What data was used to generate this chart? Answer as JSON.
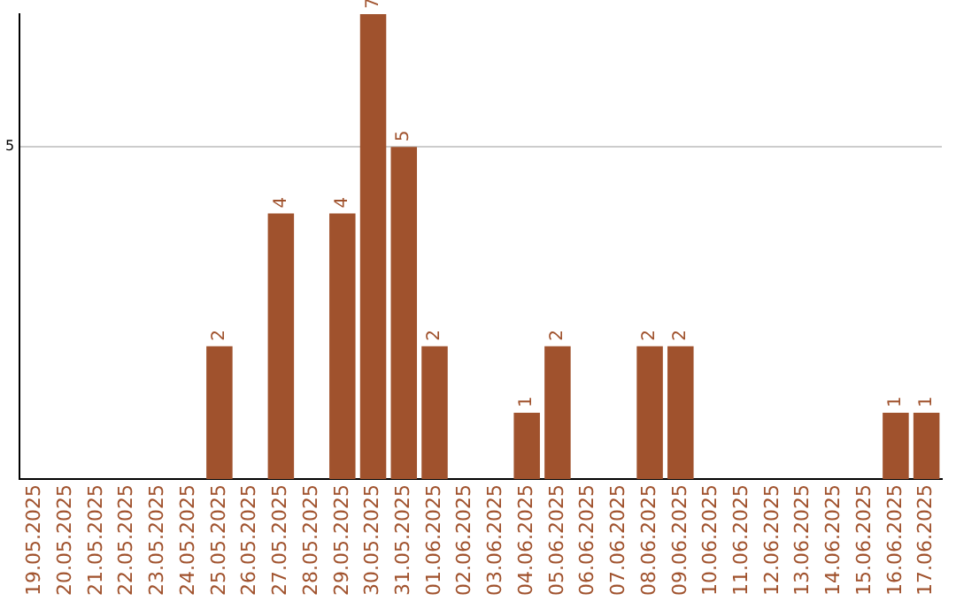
{
  "chart_data": {
    "type": "bar",
    "categories": [
      "19.05.2025",
      "20.05.2025",
      "21.05.2025",
      "22.05.2025",
      "23.05.2025",
      "24.05.2025",
      "25.05.2025",
      "26.05.2025",
      "27.05.2025",
      "28.05.2025",
      "29.05.2025",
      "30.05.2025",
      "31.05.2025",
      "01.06.2025",
      "02.06.2025",
      "03.06.2025",
      "04.06.2025",
      "05.06.2025",
      "06.06.2025",
      "07.06.2025",
      "08.06.2025",
      "09.06.2025",
      "10.06.2025",
      "11.06.2025",
      "12.06.2025",
      "13.06.2025",
      "14.06.2025",
      "15.06.2025",
      "16.06.2025",
      "17.06.2025"
    ],
    "values": [
      0,
      0,
      0,
      0,
      0,
      0,
      2,
      0,
      4,
      0,
      4,
      7,
      5,
      2,
      0,
      0,
      1,
      2,
      0,
      0,
      2,
      2,
      0,
      0,
      0,
      0,
      0,
      0,
      1,
      1
    ],
    "value_labels": [
      null,
      null,
      null,
      null,
      null,
      null,
      "2",
      null,
      "4",
      null,
      "4",
      "7",
      "5",
      "2",
      null,
      null,
      "1",
      "2",
      null,
      null,
      "2",
      "2",
      null,
      null,
      null,
      null,
      null,
      null,
      "1",
      "1"
    ],
    "color": "#a0522d",
    "ylim": [
      0,
      7
    ],
    "yticks": [
      5
    ],
    "grid": "y",
    "legend": false
  }
}
